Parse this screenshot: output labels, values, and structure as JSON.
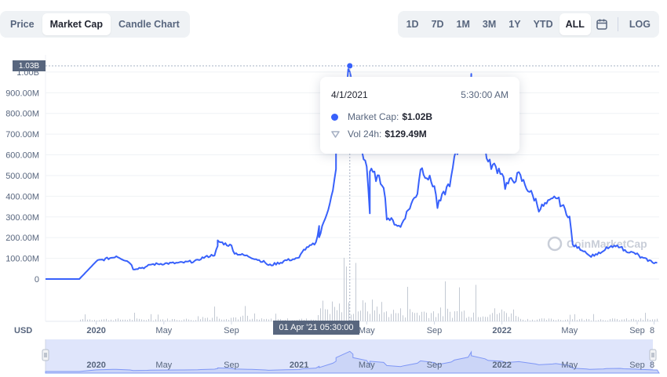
{
  "tabs": {
    "items": [
      {
        "label": "Price",
        "active": false
      },
      {
        "label": "Market Cap",
        "active": true
      },
      {
        "label": "Candle Chart",
        "active": false
      }
    ]
  },
  "ranges": {
    "items": [
      {
        "label": "1D",
        "active": false
      },
      {
        "label": "7D",
        "active": false
      },
      {
        "label": "1M",
        "active": false
      },
      {
        "label": "3M",
        "active": false
      },
      {
        "label": "1Y",
        "active": false
      },
      {
        "label": "YTD",
        "active": false
      },
      {
        "label": "ALL",
        "active": true
      }
    ],
    "calendar_icon": "calendar-icon",
    "log_label": "LOG"
  },
  "tooltip": {
    "date": "4/1/2021",
    "time": "5:30:00 AM",
    "market_cap_label": "Market Cap:",
    "market_cap_value": "$1.02B",
    "vol_label": "Vol 24h:",
    "vol_value": "$129.49M"
  },
  "crosshair": {
    "y_label": "1.03B",
    "x_label": "01 Apr '21  05:30:00"
  },
  "currency_label": "USD",
  "watermark": "CoinMarketCap",
  "colors": {
    "line": "#3861fb",
    "volume": "#c3c9d3",
    "navigator_fill": "#dfe5fb",
    "grid": "#eff2f5"
  },
  "chart_data": {
    "type": "line",
    "title": "",
    "xlabel": "",
    "ylabel": "",
    "ylim": [
      0,
      1030
    ],
    "y_unit": "M USD",
    "y_ticks": [
      "0",
      "100.00M",
      "200.00M",
      "300.00M",
      "400.00M",
      "500.00M",
      "600.00M",
      "700.00M",
      "800.00M",
      "900.00M",
      "1.00B"
    ],
    "x_ticks": [
      "2020",
      "May",
      "Sep",
      "2021",
      "May",
      "Sep",
      "2022",
      "May",
      "Sep",
      "8"
    ],
    "navigator_ticks": [
      "2020",
      "May",
      "Sep",
      "2021",
      "May",
      "Sep",
      "2022",
      "May",
      "Sep",
      "8"
    ],
    "grid": true,
    "x_range": [
      "2019-10",
      "2022-10"
    ],
    "series": [
      {
        "points": [
          [
            "2019-10",
            0
          ],
          [
            "2019-12",
            0
          ],
          [
            "2020-01",
            85
          ],
          [
            "2020-01",
            90
          ],
          [
            "2020-02",
            105
          ],
          [
            "2020-02",
            112
          ],
          [
            "2020-03",
            80
          ],
          [
            "2020-03",
            50
          ],
          [
            "2020-04",
            58
          ],
          [
            "2020-04",
            70
          ],
          [
            "2020-05",
            75
          ],
          [
            "2020-06",
            78
          ],
          [
            "2020-06",
            80
          ],
          [
            "2020-07",
            88
          ],
          [
            "2020-07",
            100
          ],
          [
            "2020-08",
            118
          ],
          [
            "2020-08",
            155
          ],
          [
            "2020-08",
            182
          ],
          [
            "2020-09",
            160
          ],
          [
            "2020-09",
            125
          ],
          [
            "2020-10",
            110
          ],
          [
            "2020-10",
            105
          ],
          [
            "2020-11",
            80
          ],
          [
            "2020-11",
            65
          ],
          [
            "2020-12",
            82
          ],
          [
            "2020-12",
            90
          ],
          [
            "2021-01",
            100
          ],
          [
            "2021-01",
            135
          ],
          [
            "2021-02",
            175
          ],
          [
            "2021-02",
            260
          ],
          [
            "2021-02",
            200
          ],
          [
            "2021-03",
            420
          ],
          [
            "2021-03",
            520
          ],
          [
            "2021-03",
            700
          ],
          [
            "2021-04",
            1020
          ],
          [
            "2021-04",
            880
          ],
          [
            "2021-04",
            700
          ],
          [
            "2021-05",
            560
          ],
          [
            "2021-05",
            320
          ],
          [
            "2021-05",
            520
          ],
          [
            "2021-06",
            460
          ],
          [
            "2021-06",
            300
          ],
          [
            "2021-07",
            250
          ],
          [
            "2021-07",
            290
          ],
          [
            "2021-08",
            420
          ],
          [
            "2021-08",
            540
          ],
          [
            "2021-09",
            450
          ],
          [
            "2021-09",
            350
          ],
          [
            "2021-10",
            480
          ],
          [
            "2021-10",
            580
          ],
          [
            "2021-11",
            720
          ],
          [
            "2021-11",
            990
          ],
          [
            "2021-11",
            800
          ],
          [
            "2021-12",
            640
          ],
          [
            "2021-12",
            560
          ],
          [
            "2022-01",
            520
          ],
          [
            "2022-01",
            450
          ],
          [
            "2022-02",
            500
          ],
          [
            "2022-03",
            380
          ],
          [
            "2022-03",
            340
          ],
          [
            "2022-04",
            380
          ],
          [
            "2022-04",
            400
          ],
          [
            "2022-05",
            300
          ],
          [
            "2022-05",
            165
          ],
          [
            "2022-06",
            130
          ],
          [
            "2022-06",
            110
          ],
          [
            "2022-07",
            130
          ],
          [
            "2022-07",
            150
          ],
          [
            "2022-08",
            160
          ],
          [
            "2022-08",
            140
          ],
          [
            "2022-09",
            120
          ],
          [
            "2022-09",
            105
          ],
          [
            "2022-10",
            80
          ],
          [
            "2022-10",
            78
          ]
        ]
      }
    ],
    "highlight_point": [
      "2021-04-01",
      1030
    ]
  }
}
